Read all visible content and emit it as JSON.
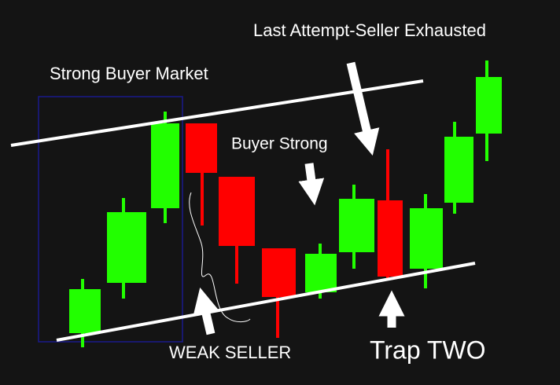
{
  "annotations": {
    "top_right": "Last Attempt-Seller Exhausted",
    "top_left": "Strong Buyer Market",
    "middle": "Buyer Strong",
    "bottom_left": "WEAK SELLER",
    "bottom_right": "Trap TWO"
  }
}
